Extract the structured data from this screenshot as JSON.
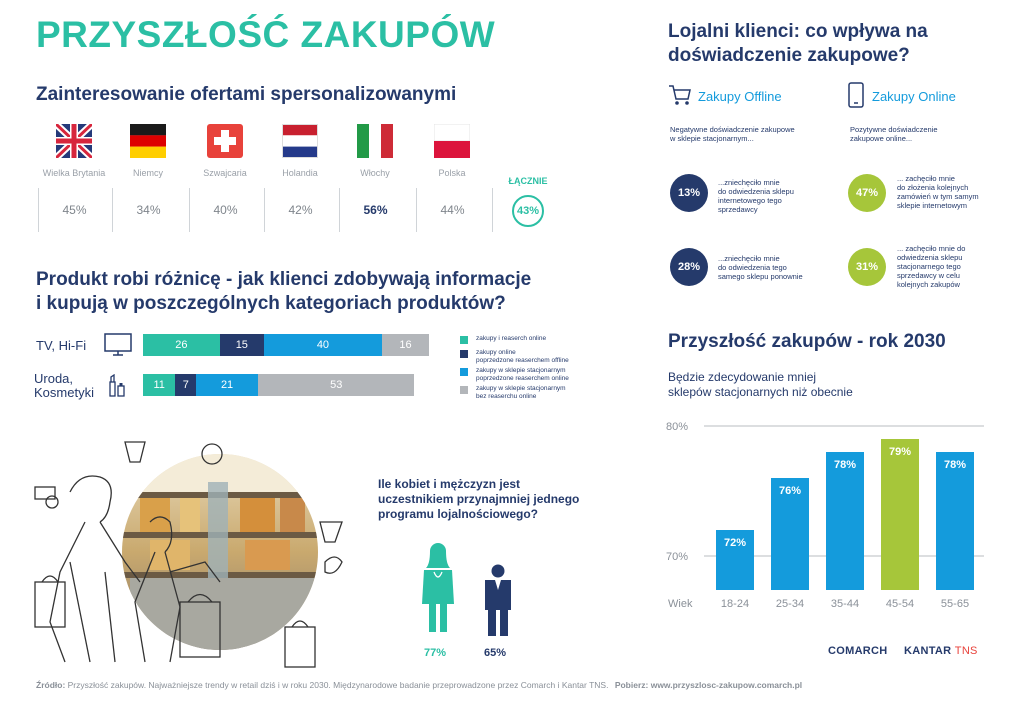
{
  "title": "PRZYSZŁOŚĆ ZAKUPÓW",
  "personalization": {
    "heading": "Zainteresowanie ofertami spersonalizowanymi",
    "countries": [
      {
        "name": "Wielka Brytania",
        "value": "45%",
        "flag": "uk-flag-icon"
      },
      {
        "name": "Niemcy",
        "value": "34%",
        "flag": "germany-flag-icon"
      },
      {
        "name": "Szwajcaria",
        "value": "40%",
        "flag": "switzerland-flag-icon"
      },
      {
        "name": "Holandia",
        "value": "42%",
        "flag": "netherlands-flag-icon"
      },
      {
        "name": "Włochy",
        "value": "56%",
        "flag": "italy-flag-icon"
      },
      {
        "name": "Polska",
        "value": "44%",
        "flag": "poland-flag-icon"
      }
    ],
    "total_label": "ŁĄCZNIE",
    "total_value": "43%"
  },
  "product": {
    "heading_line1": "Produkt robi różnicę - jak klienci zdobywają informacje",
    "heading_line2": "i kupują w poszczególnych kategoriach produktów?",
    "rows": [
      {
        "label": "TV, Hi-Fi",
        "icon": "tv-icon",
        "values": [
          26,
          15,
          40,
          16
        ]
      },
      {
        "label_line1": "Uroda,",
        "label_line2": "Kosmetyki",
        "icon": "cosmetics-icon",
        "values": [
          11,
          7,
          21,
          53
        ]
      }
    ],
    "legend": [
      {
        "text_line1": "zakupy i reaserch online",
        "text_line2": "",
        "color": "#2BBFA4"
      },
      {
        "text_line1": "zakupy online",
        "text_line2": "poprzedzone reaserchem offline",
        "color": "#253A6B"
      },
      {
        "text_line1": "zakupy w sklepie stacjonarnym",
        "text_line2": "poprzedzone reaserchem online",
        "color": "#149BDC"
      },
      {
        "text_line1": "zakupy w sklepie stacjonarnym",
        "text_line2": "bez reaserchu online",
        "color": "#B3B6BA"
      }
    ],
    "segment_colors": [
      "#2BBFA4",
      "#253A6B",
      "#149BDC",
      "#B3B6BA"
    ]
  },
  "loyalty_program": {
    "question_line1": "Ile kobiet i mężczyzn jest",
    "question_line2": "uczestnikiem przynajmniej jednego",
    "question_line3": "programu lojalnościowego?",
    "women": "77%",
    "men": "65%"
  },
  "loyal_clients": {
    "heading_line1": "Lojalni klienci: co wpływa na",
    "heading_line2": "doświadczenie zakupowe?",
    "offline_label": "Zakupy Offline",
    "online_label": "Zakupy Online",
    "offline_intro_line1": "Negatywne doświadczenie zakupowe",
    "offline_intro_line2": "w sklepie stacjonarnym...",
    "online_intro_line1": "Pozytywne doświadczenie",
    "online_intro_line2": "zakupowe online...",
    "stats": [
      {
        "value": "13%",
        "l1": "...zniechęciło mnie",
        "l2": "do odwiedzenia sklepu",
        "l3": "internetowego tego",
        "l4": "sprzedawcy",
        "color": "#253A6B"
      },
      {
        "value": "47%",
        "l1": "... zachęciło mnie",
        "l2": "do złożenia kolejnych",
        "l3": "zamówień w tym samym",
        "l4": "sklepie internetowym",
        "color": "#A6C63A"
      },
      {
        "value": "28%",
        "l1": "...zniechęciło mnie",
        "l2": "do odwiedzenia tego",
        "l3": "samego sklepu ponownie",
        "l4": "",
        "color": "#253A6B"
      },
      {
        "value": "31%",
        "l1": "... zachęciło mnie do",
        "l2": "odwiedzenia sklepu",
        "l3": "stacjonarnego tego",
        "l4": "sprzedawcy w celu",
        "l5": "kolejnych zakupów",
        "color": "#A6C63A"
      }
    ]
  },
  "future": {
    "heading": "Przyszłość zakupów - rok 2030",
    "subtitle_line1": "Będzie zdecydowanie mniej",
    "subtitle_line2": "sklepów stacjonarnych niż obecnie"
  },
  "chart_data": {
    "type": "bar",
    "title": "Przyszłość zakupów - rok 2030",
    "subtitle": "Będzie zdecydowanie mniej sklepów stacjonarnych niż obecnie",
    "xlabel": "Wiek",
    "categories": [
      "18-24",
      "25-34",
      "35-44",
      "45-54",
      "55-65"
    ],
    "values": [
      72,
      76,
      78,
      79,
      78
    ],
    "value_labels": [
      "72%",
      "76%",
      "78%",
      "79%",
      "78%"
    ],
    "ylim": [
      69,
      80
    ],
    "ytick_labels": [
      "80%",
      "70%"
    ],
    "ytick_values": [
      80,
      70
    ],
    "colors": [
      "#149BDC",
      "#149BDC",
      "#149BDC",
      "#A6C63A",
      "#149BDC"
    ]
  },
  "brands": {
    "comarch": "COMARCH",
    "kantar": "KANTAR",
    "tns": "TNS"
  },
  "footer": {
    "label": "Źródło:",
    "text": " Przyszłość zakupów. Najważniejsze trendy w retail dziś i w roku 2030. Międzynarodowe badanie przeprowadzone przez Comarch i Kantar TNS.",
    "download_label": "Pobierz:",
    "download_url": " www.przyszlosc-zakupow.comarch.pl"
  }
}
